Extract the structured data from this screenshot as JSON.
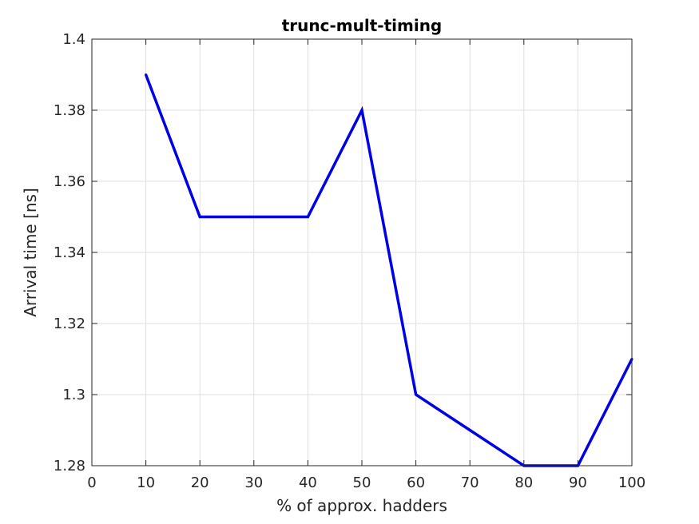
{
  "chart_data": {
    "type": "line",
    "title": "trunc-mult-timing",
    "xlabel": "% of approx. hadders",
    "ylabel": "Arrival time [ns]",
    "xlim": [
      0,
      100
    ],
    "ylim": [
      1.28,
      1.4
    ],
    "xticks": [
      0,
      10,
      20,
      30,
      40,
      50,
      60,
      70,
      80,
      90,
      100
    ],
    "yticks": [
      1.28,
      1.3,
      1.32,
      1.34,
      1.36,
      1.38,
      1.4
    ],
    "xtick_labels": [
      "0",
      "10",
      "20",
      "30",
      "40",
      "50",
      "60",
      "70",
      "80",
      "90",
      "100"
    ],
    "ytick_labels": [
      "1.28",
      "1.3",
      "1.32",
      "1.34",
      "1.36",
      "1.38",
      "1.4"
    ],
    "grid": true,
    "series": [
      {
        "color": "#0000e6",
        "x": [
          10,
          20,
          30,
          40,
          50,
          60,
          70,
          80,
          90,
          100
        ],
        "y": [
          1.39,
          1.35,
          1.35,
          1.35,
          1.38,
          1.3,
          1.29,
          1.28,
          1.28,
          1.31
        ]
      }
    ]
  }
}
